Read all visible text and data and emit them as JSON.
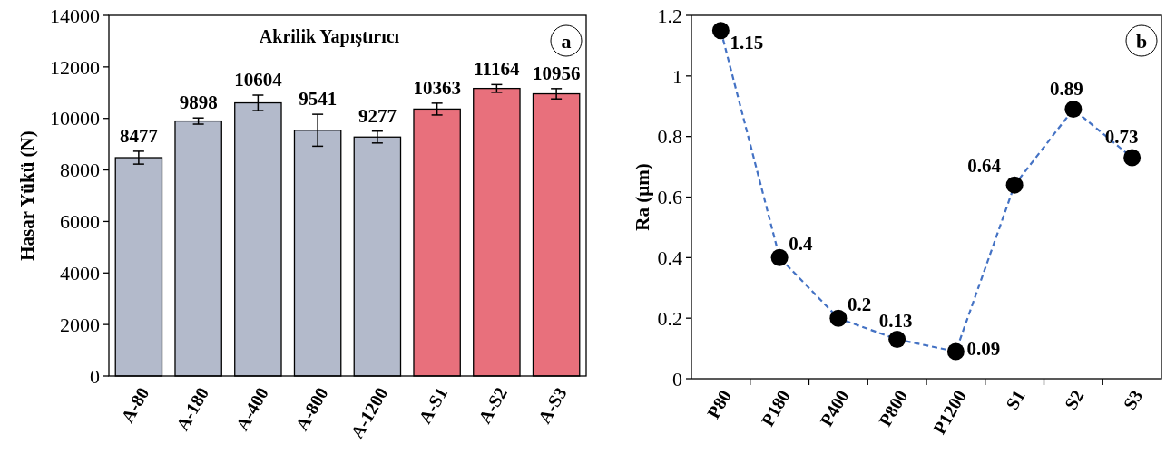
{
  "chart_data": [
    {
      "type": "bar",
      "title": "Akrilik Yapıştırıcı",
      "ylabel": "Hasar Yükü (N)",
      "categories": [
        "A-80",
        "A-180",
        "A-400",
        "A-800",
        "A-1200",
        "A-S1",
        "A-S2",
        "A-S3"
      ],
      "values": [
        8477,
        9898,
        10604,
        9541,
        9277,
        10363,
        11164,
        10956
      ],
      "colors": [
        "#b3bacb",
        "#b3bacb",
        "#b3bacb",
        "#b3bacb",
        "#b3bacb",
        "#e8707c",
        "#e8707c",
        "#e8707c"
      ],
      "errors": [
        250,
        120,
        300,
        620,
        230,
        230,
        150,
        200
      ],
      "ylim": [
        0,
        14000
      ],
      "yticks": [
        0,
        2000,
        4000,
        6000,
        8000,
        10000,
        12000,
        14000
      ],
      "grid": false,
      "data_labels": true,
      "annotations": [
        "a"
      ]
    },
    {
      "type": "line",
      "ylabel": "Ra (µm)",
      "categories": [
        "P80",
        "P180",
        "P400",
        "P800",
        "P1200",
        "S1",
        "S2",
        "S3"
      ],
      "series": [
        {
          "color": "#4472c4",
          "values": [
            1.15,
            0.4,
            0.2,
            0.13,
            0.09,
            0.64,
            0.89,
            0.73
          ]
        }
      ],
      "ylim": [
        0,
        1.2
      ],
      "yticks": [
        0,
        0.2,
        0.4,
        0.6,
        0.8,
        1,
        1.2
      ],
      "grid": false,
      "data_labels": true,
      "marker": "circle",
      "line_style": "dashed",
      "annotations": [
        "b"
      ]
    }
  ]
}
